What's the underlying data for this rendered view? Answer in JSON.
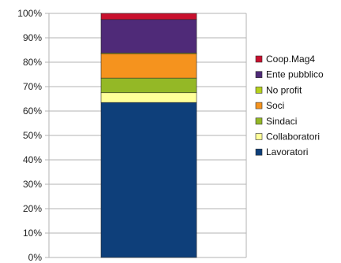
{
  "chart_data": {
    "type": "bar",
    "stacked": true,
    "categories": [
      ""
    ],
    "ylim": [
      0,
      100
    ],
    "y_tick_labels": [
      "0%",
      "10%",
      "20%",
      "30%",
      "40%",
      "50%",
      "60%",
      "70%",
      "80%",
      "90%",
      "100%"
    ],
    "grid": true,
    "legend_position": "right",
    "series": [
      {
        "name": "Lavoratori",
        "values": [
          63.5
        ],
        "color": "#0e3f7a"
      },
      {
        "name": "Collaboratori",
        "values": [
          4.0
        ],
        "color": "#ffff99"
      },
      {
        "name": "Sindaci",
        "values": [
          6.0
        ],
        "color": "#94b826"
      },
      {
        "name": "Soci",
        "values": [
          10.0
        ],
        "color": "#f5931e"
      },
      {
        "name": "No profit",
        "values": [
          0.3
        ],
        "color": "#b5d11c"
      },
      {
        "name": "Ente pubblico",
        "values": [
          13.7
        ],
        "color": "#4f2a78"
      },
      {
        "name": "Coop.Mag4",
        "values": [
          2.5
        ],
        "color": "#c8102e"
      }
    ]
  }
}
